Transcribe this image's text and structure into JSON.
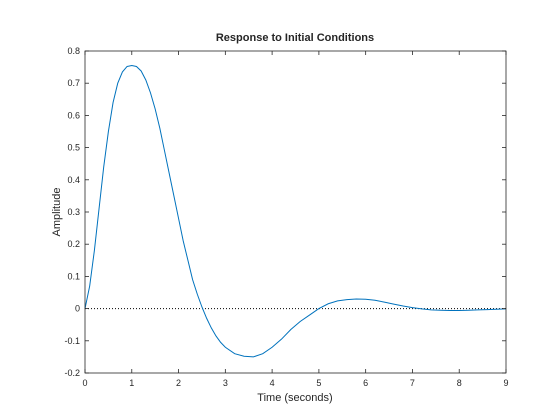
{
  "chart_data": {
    "type": "line",
    "title": "Response to Initial Conditions",
    "xlabel": "Time (seconds)",
    "ylabel": "Amplitude",
    "xlim": [
      0,
      9
    ],
    "ylim": [
      -0.2,
      0.8
    ],
    "xticks": [
      0,
      1,
      2,
      3,
      4,
      5,
      6,
      7,
      8,
      9
    ],
    "yticks": [
      -0.2,
      -0.1,
      0,
      0.1,
      0.2,
      0.3,
      0.4,
      0.5,
      0.6,
      0.7,
      0.8
    ],
    "xtick_labels": [
      "0",
      "1",
      "2",
      "3",
      "4",
      "5",
      "6",
      "7",
      "8",
      "9"
    ],
    "ytick_labels": [
      "-0.2",
      "-0.1",
      "0",
      "0.1",
      "0.2",
      "0.3",
      "0.4",
      "0.5",
      "0.6",
      "0.7",
      "0.8"
    ],
    "grid": false,
    "reference_line": {
      "y": 0,
      "style": "dotted",
      "color": "#000000"
    },
    "series": [
      {
        "color": "#0072bd",
        "x": [
          0,
          0.1,
          0.2,
          0.3,
          0.4,
          0.5,
          0.6,
          0.7,
          0.8,
          0.9,
          1.0,
          1.1,
          1.2,
          1.3,
          1.4,
          1.5,
          1.6,
          1.7,
          1.8,
          1.9,
          2.0,
          2.1,
          2.2,
          2.3,
          2.4,
          2.5,
          2.6,
          2.7,
          2.8,
          2.9,
          3.0,
          3.2,
          3.4,
          3.6,
          3.8,
          4.0,
          4.2,
          4.4,
          4.6,
          4.8,
          5.0,
          5.2,
          5.4,
          5.6,
          5.8,
          6.0,
          6.2,
          6.4,
          6.6,
          6.8,
          7.0,
          7.2,
          7.4,
          7.6,
          7.8,
          8.0,
          8.2,
          8.4,
          8.6,
          8.8,
          9.0
        ],
        "y": [
          0,
          0.07,
          0.18,
          0.31,
          0.44,
          0.55,
          0.64,
          0.7,
          0.735,
          0.752,
          0.755,
          0.752,
          0.738,
          0.71,
          0.67,
          0.62,
          0.56,
          0.49,
          0.42,
          0.35,
          0.28,
          0.21,
          0.15,
          0.09,
          0.045,
          0.005,
          -0.03,
          -0.06,
          -0.085,
          -0.105,
          -0.12,
          -0.14,
          -0.148,
          -0.15,
          -0.14,
          -0.12,
          -0.095,
          -0.065,
          -0.04,
          -0.02,
          0,
          0.015,
          0.024,
          0.028,
          0.03,
          0.029,
          0.026,
          0.02,
          0.014,
          0.008,
          0.003,
          -0.001,
          -0.004,
          -0.005,
          -0.006,
          -0.006,
          -0.005,
          -0.004,
          -0.003,
          -0.002,
          -0.001
        ]
      }
    ]
  }
}
